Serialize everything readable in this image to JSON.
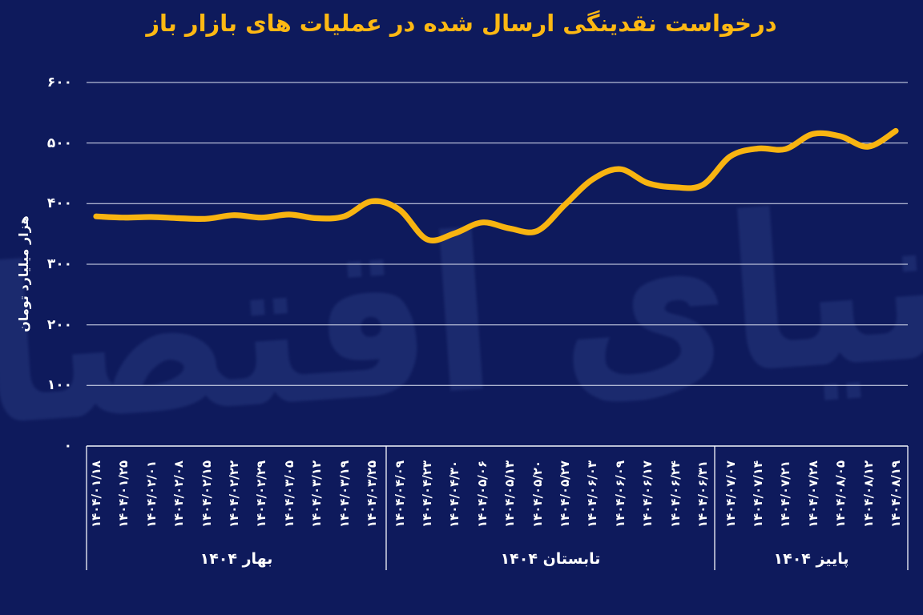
{
  "title": "درخواست نقدینگی ارسال شده در عملیات های بازار باز",
  "watermark": "دنیای اقتصاد",
  "colors": {
    "background": "#0e1a5c",
    "line": "#f8b411",
    "title": "#fdb813",
    "grid": "#dfe4f4",
    "axis": "#f4f6fc",
    "text": "#ffffff",
    "watermark": "#1b2a6e"
  },
  "chart_data": {
    "type": "line",
    "title": "درخواست نقدینگی ارسال شده در عملیات های بازار باز",
    "xlabel": "",
    "ylabel": "هزار میلیارد تومان",
    "ylim": [
      0,
      600
    ],
    "grid": "horizontal",
    "legend": "none",
    "line_color": "#f8b411",
    "y_ticks": [
      {
        "label": "۶۰۰",
        "value": 600
      },
      {
        "label": "۵۰۰",
        "value": 500
      },
      {
        "label": "۴۰۰",
        "value": 400
      },
      {
        "label": "۳۰۰",
        "value": 300
      },
      {
        "label": "۲۰۰",
        "value": 200
      },
      {
        "label": "۱۰۰",
        "value": 100
      },
      {
        "label": "۰",
        "value": 0
      }
    ],
    "groups": [
      {
        "label": "بهار ۱۴۰۴",
        "dates": [
          "۱۴۰۴/۰۱/۱۸",
          "۱۴۰۴/۰۱/۲۵",
          "۱۴۰۴/۰۲/۰۱",
          "۱۴۰۴/۰۲/۰۸",
          "۱۴۰۴/۰۲/۱۵",
          "۱۴۰۴/۰۲/۲۲",
          "۱۴۰۴/۰۲/۲۹",
          "۱۴۰۴/۰۳/۰۵",
          "۱۴۰۴/۰۳/۱۲",
          "۱۴۰۴/۰۳/۱۹",
          "۱۴۰۴/۰۳/۲۵"
        ]
      },
      {
        "label": "تابستان ۱۴۰۴",
        "dates": [
          "۱۴۰۴/۰۴/۰۹",
          "۱۴۰۴/۰۴/۲۳",
          "۱۴۰۴/۰۴/۳۰",
          "۱۴۰۴/۰۵/۰۶",
          "۱۴۰۴/۰۵/۱۳",
          "۱۴۰۴/۰۵/۲۰",
          "۱۴۰۴/۰۵/۲۷",
          "۱۴۰۴/۰۶/۰۳",
          "۱۴۰۴/۰۶/۰۹",
          "۱۴۰۴/۰۶/۱۷",
          "۱۴۰۴/۰۶/۲۴",
          "۱۴۰۴/۰۶/۳۱"
        ]
      },
      {
        "label": "پاییز ۱۴۰۴",
        "dates": [
          "۱۴۰۴/۰۷/۰۷",
          "۱۴۰۴/۰۷/۱۴",
          "۱۴۰۴/۰۷/۲۱",
          "۱۴۰۴/۰۷/۲۸",
          "۱۴۰۴/۰۸/۰۵",
          "۱۴۰۴/۰۸/۱۲",
          "۱۴۰۴/۰۸/۱۹"
        ]
      }
    ],
    "values": [
      379,
      377,
      378,
      376,
      375,
      381,
      377,
      382,
      376,
      379,
      404,
      390,
      341,
      351,
      369,
      359,
      355,
      398,
      440,
      457,
      434,
      427,
      431,
      478,
      491,
      490,
      515,
      511,
      494,
      520
    ]
  }
}
